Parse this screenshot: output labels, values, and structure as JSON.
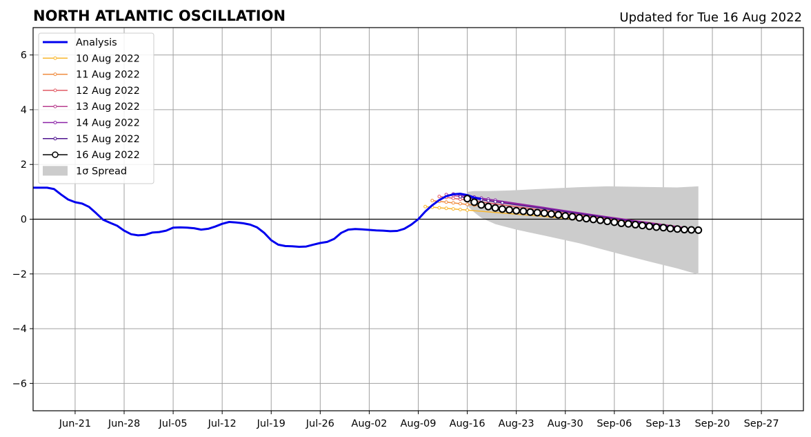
{
  "chart_data": {
    "type": "line",
    "title": "NORTH ATLANTIC OSCILLATION",
    "subtitle": "Updated for Tue 16 Aug 2022",
    "xlabel": "",
    "ylabel": "",
    "x_range": [
      "2022-06-15",
      "2022-10-03"
    ],
    "ylim": [
      -7,
      7
    ],
    "grid": true,
    "legend_position": "top-left",
    "x_ticks": [
      {
        "date": "2022-06-21",
        "label": "Jun-21"
      },
      {
        "date": "2022-06-28",
        "label": "Jun-28"
      },
      {
        "date": "2022-07-05",
        "label": "Jul-05"
      },
      {
        "date": "2022-07-12",
        "label": "Jul-12"
      },
      {
        "date": "2022-07-19",
        "label": "Jul-19"
      },
      {
        "date": "2022-07-26",
        "label": "Jul-26"
      },
      {
        "date": "2022-08-02",
        "label": "Aug-02"
      },
      {
        "date": "2022-08-09",
        "label": "Aug-09"
      },
      {
        "date": "2022-08-16",
        "label": "Aug-16"
      },
      {
        "date": "2022-08-23",
        "label": "Aug-23"
      },
      {
        "date": "2022-08-30",
        "label": "Aug-30"
      },
      {
        "date": "2022-09-06",
        "label": "Sep-06"
      },
      {
        "date": "2022-09-13",
        "label": "Sep-13"
      },
      {
        "date": "2022-09-20",
        "label": "Sep-20"
      },
      {
        "date": "2022-09-27",
        "label": "Sep-27"
      }
    ],
    "y_ticks": [
      {
        "value": 6,
        "label": "6"
      },
      {
        "value": 4,
        "label": "4"
      },
      {
        "value": 2,
        "label": "2"
      },
      {
        "value": 0,
        "label": "0"
      },
      {
        "value": -2,
        "label": "−2"
      },
      {
        "value": -4,
        "label": "−4"
      },
      {
        "value": -6,
        "label": "−6"
      }
    ],
    "analysis": {
      "name": "Analysis",
      "color": "#0000ee",
      "start_date": "2022-06-17",
      "values": [
        1.15,
        1.1,
        0.9,
        0.72,
        0.62,
        0.57,
        0.45,
        0.22,
        -0.02,
        -0.13,
        -0.24,
        -0.42,
        -0.55,
        -0.59,
        -0.57,
        -0.49,
        -0.47,
        -0.42,
        -0.31,
        -0.3,
        -0.31,
        -0.33,
        -0.38,
        -0.35,
        -0.27,
        -0.17,
        -0.1,
        -0.12,
        -0.15,
        -0.2,
        -0.3,
        -0.5,
        -0.77,
        -0.93,
        -0.98,
        -0.99,
        -1.01,
        -1.0,
        -0.93,
        -0.87,
        -0.83,
        -0.72,
        -0.5,
        -0.38,
        -0.36,
        -0.37,
        -0.39,
        -0.41,
        -0.42,
        -0.44,
        -0.43,
        -0.35,
        -0.2,
        0.0,
        0.28,
        0.51,
        0.7,
        0.84,
        0.91,
        0.93,
        0.88,
        0.79,
        0.74
      ]
    },
    "forecasts": [
      {
        "name": "10 Aug 2022",
        "color": "#f8b62c",
        "start_date": "2022-08-10",
        "start_value": 0.46,
        "end_date": "2022-09-16",
        "end_value": -0.33
      },
      {
        "name": "11 Aug 2022",
        "color": "#ef8a3c",
        "start_date": "2022-08-11",
        "start_value": 0.68,
        "end_date": "2022-09-16",
        "end_value": -0.34
      },
      {
        "name": "12 Aug 2022",
        "color": "#e15a64",
        "start_date": "2022-08-12",
        "start_value": 0.83,
        "end_date": "2022-09-16",
        "end_value": -0.35
      },
      {
        "name": "13 Aug 2022",
        "color": "#b83d8e",
        "start_date": "2022-08-13",
        "start_value": 0.9,
        "end_date": "2022-09-16",
        "end_value": -0.3
      },
      {
        "name": "14 Aug 2022",
        "color": "#8a21a6",
        "start_date": "2022-08-14",
        "start_value": 0.92,
        "end_date": "2022-09-16",
        "end_value": -0.33
      },
      {
        "name": "15 Aug 2022",
        "color": "#4e138f",
        "start_date": "2022-08-15",
        "start_value": 0.82,
        "end_date": "2022-09-16",
        "end_value": -0.35
      }
    ],
    "latest_forecast": {
      "name": "16 Aug 2022",
      "color": "#000000",
      "start_date": "2022-08-16",
      "values": [
        0.75,
        0.62,
        0.52,
        0.46,
        0.41,
        0.37,
        0.34,
        0.31,
        0.29,
        0.26,
        0.24,
        0.22,
        0.19,
        0.16,
        0.12,
        0.09,
        0.05,
        0.02,
        -0.01,
        -0.04,
        -0.08,
        -0.11,
        -0.15,
        -0.17,
        -0.2,
        -0.23,
        -0.26,
        -0.29,
        -0.31,
        -0.34,
        -0.36,
        -0.38,
        -0.39,
        -0.4
      ]
    },
    "spread": {
      "name": "1σ Spread",
      "color": "#cccccc",
      "start_date": "2022-08-16",
      "end_date": "2022-09-18",
      "upper": [
        [
          0,
          1.0
        ],
        [
          1,
          1.03
        ],
        [
          3,
          1.03
        ],
        [
          6,
          1.05
        ],
        [
          10,
          1.1
        ],
        [
          16,
          1.17
        ],
        [
          20,
          1.2
        ],
        [
          25,
          1.18
        ],
        [
          30,
          1.16
        ],
        [
          33,
          1.2
        ]
      ],
      "lower": [
        [
          0,
          0.5
        ],
        [
          1,
          0.25
        ],
        [
          2,
          0.05
        ],
        [
          4,
          -0.18
        ],
        [
          7,
          -0.38
        ],
        [
          11,
          -0.6
        ],
        [
          16,
          -0.88
        ],
        [
          21,
          -1.22
        ],
        [
          26,
          -1.55
        ],
        [
          30,
          -1.8
        ],
        [
          33,
          -2.02
        ]
      ]
    }
  }
}
